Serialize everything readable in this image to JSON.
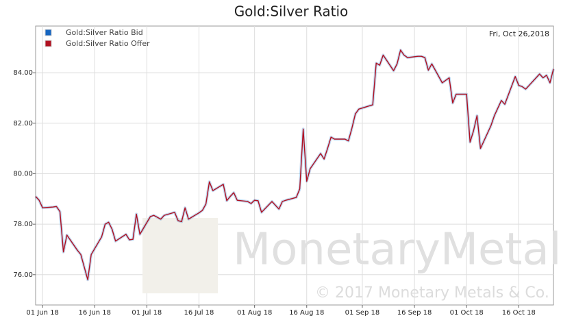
{
  "chart_data": {
    "type": "line",
    "title": "Gold:Silver Ratio",
    "annotations": [
      "Fri, Oct 26,2018"
    ],
    "watermark": [
      "MonetaryMetals",
      "© 2017 Monetary Metals & Co."
    ],
    "x": [
      "2018-05-30",
      "2018-05-31",
      "2018-06-01",
      "2018-06-04",
      "2018-06-05",
      "2018-06-06",
      "2018-06-07",
      "2018-06-08",
      "2018-06-11",
      "2018-06-12",
      "2018-06-13",
      "2018-06-14",
      "2018-06-15",
      "2018-06-18",
      "2018-06-19",
      "2018-06-20",
      "2018-06-21",
      "2018-06-22",
      "2018-06-25",
      "2018-06-26",
      "2018-06-27",
      "2018-06-28",
      "2018-06-29",
      "2018-07-02",
      "2018-07-03",
      "2018-07-05",
      "2018-07-06",
      "2018-07-09",
      "2018-07-10",
      "2018-07-11",
      "2018-07-12",
      "2018-07-13",
      "2018-07-16",
      "2018-07-17",
      "2018-07-18",
      "2018-07-19",
      "2018-07-20",
      "2018-07-23",
      "2018-07-24",
      "2018-07-25",
      "2018-07-26",
      "2018-07-27",
      "2018-07-30",
      "2018-07-31",
      "2018-08-01",
      "2018-08-02",
      "2018-08-03",
      "2018-08-06",
      "2018-08-07",
      "2018-08-08",
      "2018-08-09",
      "2018-08-10",
      "2018-08-13",
      "2018-08-14",
      "2018-08-15",
      "2018-08-16",
      "2018-08-17",
      "2018-08-20",
      "2018-08-21",
      "2018-08-22",
      "2018-08-23",
      "2018-08-24",
      "2018-08-27",
      "2018-08-28",
      "2018-08-29",
      "2018-08-30",
      "2018-08-31",
      "2018-09-04",
      "2018-09-05",
      "2018-09-06",
      "2018-09-07",
      "2018-09-10",
      "2018-09-11",
      "2018-09-12",
      "2018-09-13",
      "2018-09-14",
      "2018-09-17",
      "2018-09-18",
      "2018-09-19",
      "2018-09-20",
      "2018-09-21",
      "2018-09-24",
      "2018-09-25",
      "2018-09-26",
      "2018-09-27",
      "2018-09-28",
      "2018-10-01",
      "2018-10-02",
      "2018-10-03",
      "2018-10-04",
      "2018-10-05",
      "2018-10-08",
      "2018-10-09",
      "2018-10-10",
      "2018-10-11",
      "2018-10-12",
      "2018-10-15",
      "2018-10-16",
      "2018-10-17",
      "2018-10-18",
      "2018-10-19",
      "2018-10-22",
      "2018-10-23",
      "2018-10-24",
      "2018-10-25",
      "2018-10-26"
    ],
    "series": [
      {
        "name": "Gold:Silver Ratio Bid",
        "color": "#1565c0",
        "values": [
          79.1,
          78.95,
          78.65,
          78.68,
          78.7,
          78.5,
          76.9,
          77.57,
          76.97,
          76.8,
          76.3,
          75.8,
          76.8,
          77.5,
          78.0,
          78.08,
          77.8,
          77.33,
          77.6,
          77.38,
          77.4,
          78.4,
          77.6,
          78.3,
          78.35,
          78.2,
          78.35,
          78.47,
          78.14,
          78.1,
          78.65,
          78.2,
          78.45,
          78.55,
          78.8,
          79.68,
          79.33,
          79.58,
          78.93,
          79.1,
          79.25,
          78.95,
          78.9,
          78.82,
          78.95,
          78.93,
          78.47,
          78.9,
          78.75,
          78.6,
          78.9,
          78.95,
          79.06,
          79.4,
          81.77,
          79.7,
          80.2,
          80.8,
          80.58,
          81.0,
          81.45,
          81.37,
          81.37,
          81.3,
          81.8,
          82.37,
          82.56,
          82.73,
          84.38,
          84.3,
          84.7,
          84.08,
          84.35,
          84.9,
          84.7,
          84.6,
          84.65,
          84.65,
          84.6,
          84.1,
          84.35,
          83.6,
          83.7,
          83.8,
          82.8,
          83.15,
          83.15,
          81.25,
          81.7,
          82.3,
          81.0,
          81.9,
          82.3,
          82.6,
          82.9,
          82.75,
          83.85,
          83.5,
          83.45,
          83.35,
          83.5,
          83.95,
          83.8,
          83.9,
          83.6,
          84.15
        ]
      },
      {
        "name": "Gold:Silver Ratio Offer",
        "color": "#b01020",
        "values": [
          79.1,
          78.95,
          78.65,
          78.68,
          78.7,
          78.5,
          76.9,
          77.57,
          76.97,
          76.8,
          76.3,
          75.8,
          76.8,
          77.5,
          78.0,
          78.08,
          77.8,
          77.33,
          77.6,
          77.38,
          77.4,
          78.4,
          77.6,
          78.3,
          78.35,
          78.2,
          78.35,
          78.47,
          78.14,
          78.1,
          78.65,
          78.2,
          78.45,
          78.55,
          78.8,
          79.68,
          79.33,
          79.58,
          78.93,
          79.1,
          79.25,
          78.95,
          78.9,
          78.82,
          78.95,
          78.93,
          78.47,
          78.9,
          78.75,
          78.6,
          78.9,
          78.95,
          79.06,
          79.4,
          81.77,
          79.7,
          80.2,
          80.8,
          80.58,
          81.0,
          81.45,
          81.37,
          81.37,
          81.3,
          81.8,
          82.37,
          82.56,
          82.73,
          84.38,
          84.3,
          84.7,
          84.08,
          84.35,
          84.9,
          84.7,
          84.6,
          84.65,
          84.65,
          84.6,
          84.1,
          84.35,
          83.6,
          83.7,
          83.8,
          82.8,
          83.15,
          83.15,
          81.25,
          81.7,
          82.3,
          81.0,
          81.9,
          82.3,
          82.6,
          82.9,
          82.75,
          83.85,
          83.5,
          83.45,
          83.35,
          83.5,
          83.95,
          83.8,
          83.9,
          83.6,
          84.15
        ]
      }
    ],
    "xlim": [
      "2018-05-30",
      "2018-10-26"
    ],
    "xticks": [
      {
        "value": "2018-06-01",
        "label": "01 Jun 18"
      },
      {
        "value": "2018-06-16",
        "label": "16 Jun 18"
      },
      {
        "value": "2018-07-01",
        "label": "01 Jul 18"
      },
      {
        "value": "2018-07-16",
        "label": "16 Jul 18"
      },
      {
        "value": "2018-08-01",
        "label": "01 Aug 18"
      },
      {
        "value": "2018-08-16",
        "label": "16 Aug 18"
      },
      {
        "value": "2018-09-01",
        "label": "01 Sep 18"
      },
      {
        "value": "2018-09-16",
        "label": "16 Sep 18"
      },
      {
        "value": "2018-10-01",
        "label": "01 Oct 18"
      },
      {
        "value": "2018-10-16",
        "label": "16 Oct 18"
      }
    ],
    "ylim": [
      74.8,
      85.85
    ],
    "yticks": [
      {
        "value": 76,
        "label": "76.00"
      },
      {
        "value": 78,
        "label": "78.00"
      },
      {
        "value": 80,
        "label": "80.00"
      },
      {
        "value": 82,
        "label": "82.00"
      },
      {
        "value": 84,
        "label": "84.00"
      }
    ],
    "grid": true,
    "legend": "upper left"
  }
}
